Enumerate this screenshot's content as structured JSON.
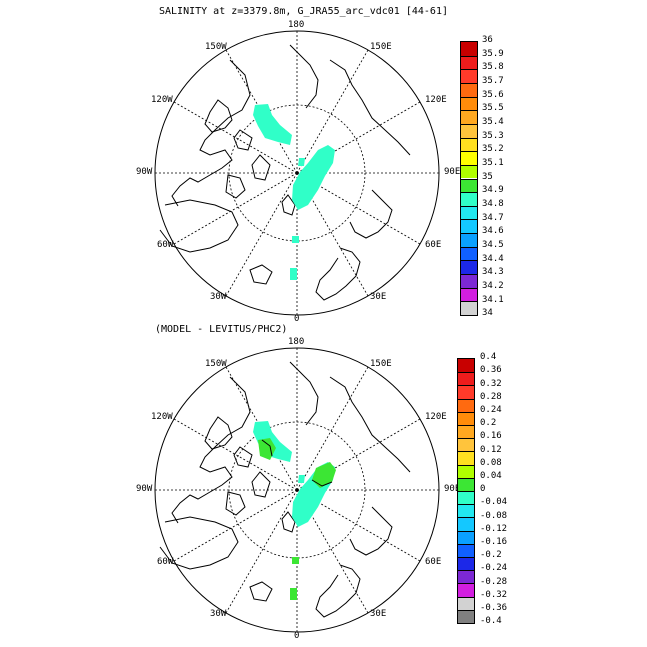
{
  "panel1": {
    "title": "SALINITY at z=3379.8m, G_JRA55_arc_vdc01 [44-61]",
    "lon_labels": [
      "180",
      "150E",
      "120E",
      "90E",
      "60E",
      "30E",
      "0",
      "30W",
      "60W",
      "90W",
      "120W",
      "150W"
    ],
    "colorbar": {
      "ticks": [
        "36",
        "35.9",
        "35.8",
        "35.7",
        "35.6",
        "35.5",
        "35.4",
        "35.3",
        "35.2",
        "35.1",
        "35",
        "34.9",
        "34.8",
        "34.7",
        "34.6",
        "34.5",
        "34.4",
        "34.3",
        "34.2",
        "34.1",
        "34"
      ],
      "colors": [
        "#c80000",
        "#ee1c1c",
        "#ff3a2a",
        "#ff6a10",
        "#ff8c0a",
        "#ffa820",
        "#ffc43c",
        "#ffe020",
        "#ffff00",
        "#b0ff00",
        "#3ce634",
        "#30ffc8",
        "#22e8f0",
        "#14c8ff",
        "#0aa0ff",
        "#1060ff",
        "#1c28e8",
        "#7c28d4",
        "#d21ee0",
        "#d2d2d2"
      ],
      "color_end": "#808080"
    }
  },
  "panel2": {
    "title": "(MODEL - LEVITUS/PHC2)",
    "lon_labels": [
      "180",
      "150E",
      "120E",
      "90E",
      "60E",
      "30E",
      "0",
      "30W",
      "60W",
      "90W",
      "120W",
      "150W"
    ],
    "colorbar": {
      "ticks": [
        "0.4",
        "0.36",
        "0.32",
        "0.28",
        "0.24",
        "0.2",
        "0.16",
        "0.12",
        "0.08",
        "0.04",
        "0",
        "-0.04",
        "-0.08",
        "-0.12",
        "-0.16",
        "-0.2",
        "-0.24",
        "-0.28",
        "-0.32",
        "-0.36",
        "-0.4"
      ],
      "colors": [
        "#c80000",
        "#ee1c1c",
        "#ff3a2a",
        "#ff6a10",
        "#ff8c0a",
        "#ffa820",
        "#ffc43c",
        "#ffe020",
        "#b0ff00",
        "#3ce634",
        "#30ffc8",
        "#22e8f0",
        "#14c8ff",
        "#0aa0ff",
        "#1060ff",
        "#1c28e8",
        "#7c28d4",
        "#d21ee0",
        "#d2d2d2",
        "#808080"
      ]
    }
  }
}
